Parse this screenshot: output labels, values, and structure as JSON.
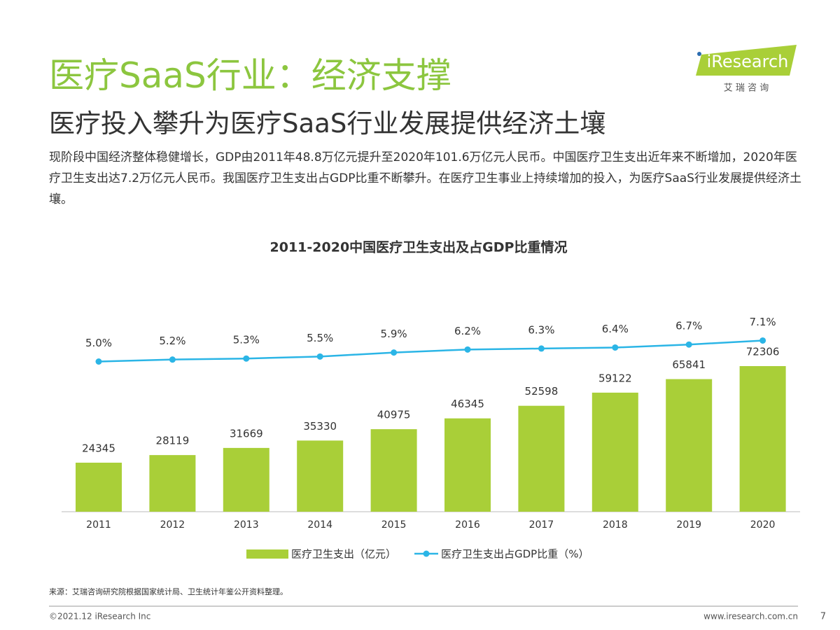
{
  "header": {
    "title": "医疗SaaS行业：经济支撑",
    "subtitle": "医疗投入攀升为医疗SaaS行业发展提供经济土壤",
    "description": "现阶段中国经济整体稳健增长，GDP由2011年48.8万亿元提升至2020年101.6万亿元人民币。中国医疗卫生支出近年来不断增加，2020年医疗卫生支出达7.2万亿元人民币。我国医疗卫生支出占GDP比重不断攀升。在医疗卫生事业上持续增加的投入，为医疗SaaS行业发展提供经济土壤。",
    "logo": "iResearch",
    "logo_subtitle": "艾 瑞 咨 询"
  },
  "chart_data": {
    "type": "combo",
    "title": "2011-2020中国医疗卫生支出及占GDP比重情况",
    "categories": [
      "2011",
      "2012",
      "2013",
      "2014",
      "2015",
      "2016",
      "2017",
      "2018",
      "2019",
      "2020"
    ],
    "series": [
      {
        "name": "医疗卫生支出（亿元）",
        "type": "bar",
        "color": "#a9cf38",
        "values": [
          24345,
          28119,
          31669,
          35330,
          40975,
          46345,
          52598,
          59122,
          65841,
          72306
        ]
      },
      {
        "name": "医疗卫生支出占GDP比重（%）",
        "type": "line",
        "color": "#2bb5e6",
        "values": [
          5.0,
          5.2,
          5.3,
          5.5,
          5.9,
          6.2,
          6.3,
          6.4,
          6.7,
          7.1
        ],
        "value_labels": [
          "5.0%",
          "5.2%",
          "5.3%",
          "5.5%",
          "5.9%",
          "6.2%",
          "6.3%",
          "6.4%",
          "6.7%",
          "7.1%"
        ]
      }
    ]
  },
  "footer": {
    "source": "来源：艾瑞咨询研究院根据国家统计局、卫生统计年鉴公开资料整理。",
    "copyright": "©2021.12 iResearch Inc",
    "website": "www.iresearch.com.cn",
    "page": "7"
  }
}
